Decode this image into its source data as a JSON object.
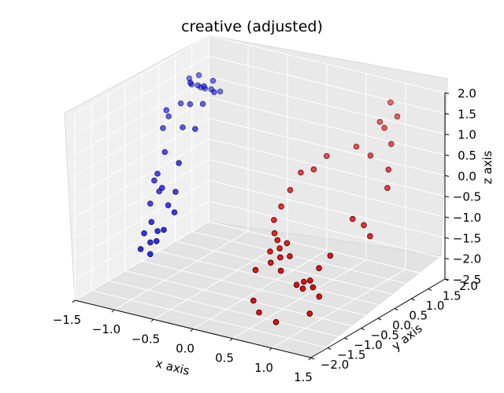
{
  "chart_data": {
    "type": "scatter",
    "projection": "3d",
    "title": "creative (adjusted)",
    "xlabel": "x axis",
    "ylabel": "y axis",
    "zlabel": "z axis",
    "xlim": [
      -1.5,
      1.5
    ],
    "ylim": [
      -2.0,
      2.0
    ],
    "zlim": [
      -2.5,
      2.0
    ],
    "x_ticks": [
      -1.5,
      -1.0,
      -0.5,
      0.0,
      0.5,
      1.0,
      1.5
    ],
    "x_tick_labels": [
      "−1.5",
      "−1.0",
      "−0.5",
      "0.0",
      "0.5",
      "1.0",
      "1.5"
    ],
    "y_ticks": [
      -2.0,
      -1.5,
      -1.0,
      -0.5,
      0.0,
      0.5,
      1.0,
      1.5,
      2.0
    ],
    "y_tick_labels": [
      "−2.0",
      "−1.5",
      "−1.0",
      "−0.5",
      "0.0",
      "0.5",
      "1.0",
      "1.5",
      "2.0"
    ],
    "z_ticks": [
      -2.5,
      -2.0,
      -1.5,
      -1.0,
      -0.5,
      0.0,
      0.5,
      1.0,
      1.5,
      2.0
    ],
    "z_tick_labels": [
      "−2.5",
      "−2.0",
      "−1.5",
      "−1.0",
      "−0.5",
      "0.0",
      "0.5",
      "1.0",
      "1.5",
      "2.0"
    ],
    "grid": true,
    "colors": {
      "series_a": "#0000ff",
      "series_b": "#ff0000",
      "pane": "#f2f2f2",
      "pane_side": "#e6e6e6"
    },
    "series": [
      {
        "color": "#0000ff",
        "points": [
          [
            -1.3,
            0.95,
            1.55
          ],
          [
            -1.25,
            0.9,
            1.45
          ],
          [
            -1.2,
            1.0,
            1.65
          ],
          [
            -1.15,
            0.85,
            1.5
          ],
          [
            -1.1,
            0.95,
            1.4
          ],
          [
            -1.05,
            0.8,
            1.55
          ],
          [
            -1.0,
            0.9,
            1.45
          ],
          [
            -0.95,
            1.05,
            1.35
          ],
          [
            -0.9,
            0.75,
            1.5
          ],
          [
            -1.22,
            1.1,
            1.3
          ],
          [
            -1.18,
            0.7,
            1.62
          ],
          [
            -1.02,
            1.0,
            1.6
          ],
          [
            -0.98,
            0.6,
            1.25
          ],
          [
            -1.12,
            0.55,
            1.2
          ],
          [
            -1.28,
            0.65,
            1.1
          ],
          [
            -1.35,
            0.45,
            0.85
          ],
          [
            -1.4,
            0.5,
            0.95
          ],
          [
            -1.38,
            0.35,
            0.6
          ],
          [
            -1.15,
            0.4,
            0.7
          ],
          [
            -0.95,
            0.3,
            0.8
          ],
          [
            -1.25,
            0.1,
            0.2
          ],
          [
            -1.05,
            0.05,
            0.05
          ],
          [
            -1.3,
            0.0,
            -0.3
          ],
          [
            -1.32,
            -0.05,
            -0.45
          ],
          [
            -1.2,
            -0.1,
            -0.55
          ],
          [
            -1.05,
            -0.05,
            -0.6
          ],
          [
            -1.3,
            0.05,
            -0.75
          ],
          [
            -1.1,
            -0.15,
            -0.9
          ],
          [
            -1.0,
            -0.2,
            -1.0
          ],
          [
            -1.35,
            -0.1,
            -1.0
          ],
          [
            -1.25,
            -0.3,
            -1.3
          ],
          [
            -1.15,
            -0.35,
            -1.45
          ],
          [
            -1.3,
            -0.4,
            -1.55
          ],
          [
            -1.2,
            -0.45,
            -1.7
          ],
          [
            -1.1,
            -0.5,
            -1.6
          ],
          [
            -1.05,
            -0.4,
            -1.35
          ],
          [
            -1.28,
            -0.55,
            -1.85
          ],
          [
            -1.18,
            -0.5,
            -1.95
          ]
        ]
      },
      {
        "color": "#ff0000",
        "points": [
          [
            1.0,
            1.55,
            1.75
          ],
          [
            1.15,
            1.4,
            1.55
          ],
          [
            1.05,
            1.25,
            1.3
          ],
          [
            0.95,
            1.35,
            1.35
          ],
          [
            1.2,
            1.1,
            1.05
          ],
          [
            0.8,
            1.0,
            0.85
          ],
          [
            1.0,
            0.95,
            0.75
          ],
          [
            1.25,
            0.9,
            0.55
          ],
          [
            0.55,
            0.7,
            0.65
          ],
          [
            0.45,
            0.55,
            0.35
          ],
          [
            0.35,
            0.4,
            0.3
          ],
          [
            0.3,
            0.2,
            -0.05
          ],
          [
            1.3,
            0.75,
            0.2
          ],
          [
            0.25,
            0.05,
            -0.4
          ],
          [
            0.2,
            -0.05,
            -0.7
          ],
          [
            1.05,
            0.3,
            -0.45
          ],
          [
            1.15,
            0.4,
            -0.6
          ],
          [
            1.25,
            0.35,
            -0.8
          ],
          [
            0.25,
            -0.15,
            -0.95
          ],
          [
            0.35,
            -0.3,
            -1.0
          ],
          [
            0.45,
            -0.25,
            -1.05
          ],
          [
            0.4,
            -0.35,
            -1.15
          ],
          [
            0.3,
            -0.4,
            -1.25
          ],
          [
            0.45,
            -0.45,
            -1.3
          ],
          [
            0.55,
            -0.4,
            -1.25
          ],
          [
            0.35,
            -0.5,
            -1.45
          ],
          [
            0.5,
            -0.55,
            -1.55
          ],
          [
            0.2,
            -0.6,
            -1.65
          ],
          [
            1.0,
            -0.25,
            -1.1
          ],
          [
            0.9,
            -0.35,
            -1.4
          ],
          [
            0.85,
            -0.5,
            -1.65
          ],
          [
            0.75,
            -0.45,
            -1.75
          ],
          [
            0.7,
            -0.55,
            -1.8
          ],
          [
            0.8,
            -0.6,
            -1.82
          ],
          [
            0.95,
            -0.65,
            -1.7
          ],
          [
            1.05,
            -0.7,
            -1.85
          ],
          [
            0.3,
            -0.9,
            -2.2
          ],
          [
            0.5,
            -1.2,
            -2.25
          ],
          [
            0.8,
            -1.4,
            -2.25
          ],
          [
            1.1,
            -1.1,
            -2.05
          ]
        ]
      }
    ]
  }
}
